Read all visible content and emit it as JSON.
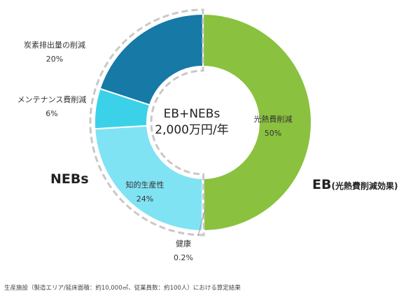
{
  "chart_data": {
    "type": "pie",
    "variant": "donut",
    "total_label": "EB+NEBs",
    "total_value": "2,000万円/年",
    "slices": [
      {
        "label": "光熱費削減",
        "value": 50,
        "value_label": "50%",
        "color": "#8ac13f",
        "group": "EB"
      },
      {
        "label": "健康",
        "value": 0.2,
        "value_label": "0.2%",
        "color": "#a6e8f5",
        "group": "NEBs"
      },
      {
        "label": "知的生産性",
        "value": 24,
        "value_label": "24%",
        "color": "#80e3f3",
        "group": "NEBs"
      },
      {
        "label": "メンテナンス費削減",
        "value": 6,
        "value_label": "6%",
        "color": "#3bd2e9",
        "group": "NEBs"
      },
      {
        "label": "炭素排出量の削減",
        "value": 20,
        "value_label": "20%",
        "color": "#1679a6",
        "group": "NEBs"
      }
    ],
    "groups": [
      {
        "name": "EB",
        "note": "(光熱費削減効果)"
      },
      {
        "name": "NEBs",
        "note": ""
      }
    ],
    "legend": "none"
  },
  "footnote": "生産施設（製造エリア/延床面積：約10,000㎡、従業員数：約100人）における算定結果"
}
